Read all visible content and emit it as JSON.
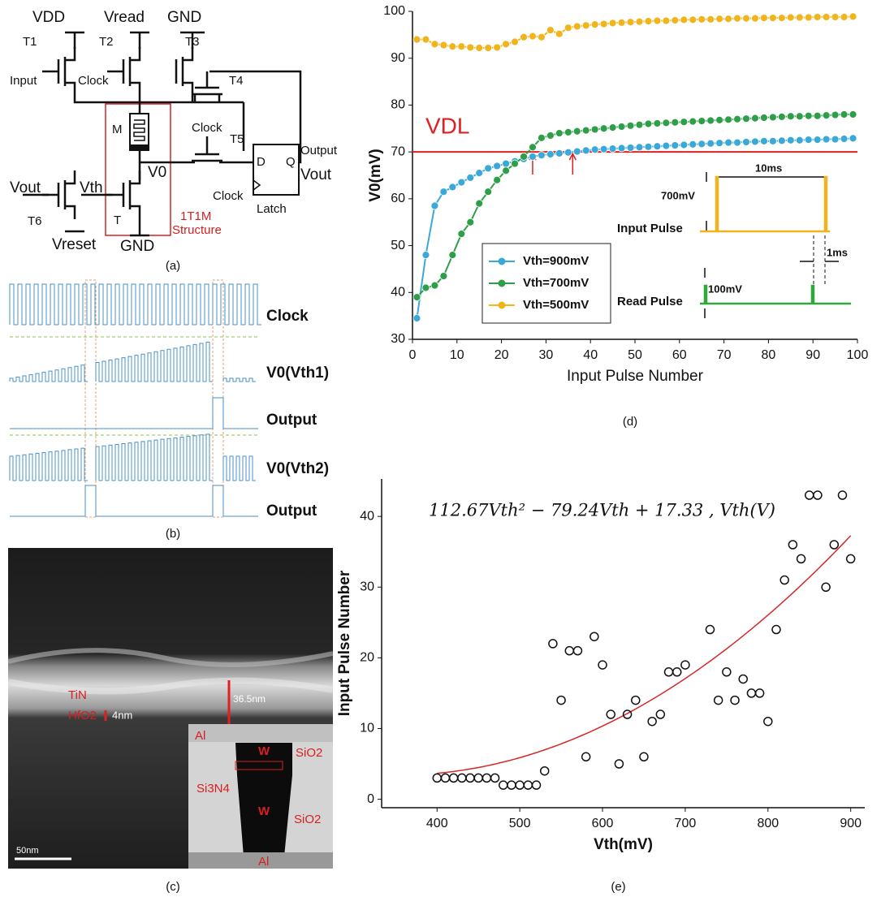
{
  "panel_a": {
    "label": "(a)",
    "texts": {
      "vdd": "VDD",
      "t1": "T1",
      "vread": "Vread",
      "t2": "T2",
      "gnd_top": "GND",
      "t3": "T3",
      "input": "Input",
      "clock1": "Clock",
      "t4": "T4",
      "m": "M",
      "clock2": "Clock",
      "t5": "T5",
      "output": "Output",
      "vout_left": "Vout",
      "vth": "Vth",
      "v0": "V0",
      "d": "D",
      "q": "Q",
      "vout_right": "Vout",
      "clock3": "Clock",
      "t6": "T6",
      "t": "T",
      "latch": "Latch",
      "vreset": "Vreset",
      "gnd_bottom": "GND",
      "structure_1": "1T1M",
      "structure_2": "Structure"
    }
  },
  "panel_b": {
    "label": "(b)",
    "signals": [
      "Clock",
      "V0(Vth1)",
      "Output",
      "V0(Vth2)",
      "Output"
    ]
  },
  "panel_c": {
    "label": "(c)",
    "texts": {
      "tin": "TiN",
      "hfo2": "HfO2",
      "thin": "4nm",
      "thick": "36.5nm",
      "al_top": "Al",
      "w_top": "W",
      "sio2_top": "SiO2",
      "si3n4": "Si3N4",
      "w_bottom": "W",
      "sio2_bottom": "SiO2",
      "al_bottom": "Al",
      "scale": "50nm"
    }
  },
  "chart_data": [
    {
      "type": "line",
      "panel_label": "(d)",
      "x": [
        1,
        3,
        5,
        7,
        9,
        11,
        13,
        15,
        17,
        19,
        21,
        23,
        25,
        27,
        29,
        31,
        33,
        35,
        37,
        39,
        41,
        43,
        45,
        47,
        49,
        51,
        53,
        55,
        57,
        59,
        61,
        63,
        65,
        67,
        69,
        71,
        73,
        75,
        77,
        79,
        81,
        83,
        85,
        87,
        89,
        91,
        93,
        95,
        97,
        99
      ],
      "series": [
        {
          "name": "Vth=900mV",
          "color": "#3aa8d8",
          "values": [
            34.5,
            48,
            58.5,
            61.5,
            62.5,
            63.5,
            64.5,
            65.5,
            66.5,
            67,
            67.5,
            68,
            68.5,
            69,
            69.3,
            69.5,
            69.7,
            69.9,
            70.1,
            70.3,
            70.5,
            70.6,
            70.7,
            70.8,
            70.9,
            71,
            71.1,
            71.2,
            71.3,
            71.4,
            71.5,
            71.6,
            71.7,
            71.8,
            71.9,
            72,
            72,
            72.1,
            72.2,
            72.3,
            72.3,
            72.4,
            72.5,
            72.5,
            72.6,
            72.6,
            72.7,
            72.7,
            72.8,
            72.9
          ]
        },
        {
          "name": "Vth=700mV",
          "color": "#2e9f48",
          "values": [
            39,
            41,
            41.5,
            43.5,
            48,
            52.5,
            55,
            59,
            61.5,
            64,
            66,
            67.5,
            69,
            71,
            73,
            73.5,
            74,
            74.2,
            74.4,
            74.6,
            74.8,
            75,
            75.2,
            75.4,
            75.6,
            75.8,
            76,
            76.1,
            76.2,
            76.3,
            76.4,
            76.5,
            76.6,
            76.7,
            76.8,
            76.9,
            77,
            77.1,
            77.2,
            77.3,
            77.4,
            77.5,
            77.6,
            77.6,
            77.7,
            77.7,
            77.8,
            77.9,
            78,
            78
          ]
        },
        {
          "name": "Vth=500mV",
          "color": "#f2b41c",
          "values": [
            94,
            94,
            93,
            92.8,
            92.5,
            92.5,
            92.3,
            92.2,
            92.2,
            92.3,
            93,
            93.5,
            94.5,
            94.7,
            94.5,
            96,
            95.2,
            96.5,
            96.8,
            97,
            97.2,
            97.3,
            97.5,
            97.6,
            97.7,
            97.8,
            97.9,
            98,
            98,
            98.1,
            98.2,
            98.2,
            98.3,
            98.3,
            98.4,
            98.4,
            98.5,
            98.5,
            98.5,
            98.6,
            98.6,
            98.6,
            98.7,
            98.7,
            98.7,
            98.8,
            98.8,
            98.8,
            98.8,
            98.9
          ]
        }
      ],
      "xlim": [
        0,
        100
      ],
      "ylim": [
        30,
        100
      ],
      "xticks": [
        0,
        10,
        20,
        30,
        40,
        50,
        60,
        70,
        80,
        90,
        100
      ],
      "yticks": [
        30,
        40,
        50,
        60,
        70,
        80,
        90,
        100
      ],
      "xlabel": "Input Pulse Number",
      "ylabel": "V0(mV)",
      "reference_line": {
        "value": 70,
        "label": "VDL",
        "color": "#e02020"
      },
      "arrows_x": [
        27,
        36
      ],
      "inset": {
        "period": "10ms",
        "input_amp": "700mV",
        "input_name": "Input Pulse",
        "width": "1ms",
        "read_amp": "100mV",
        "read_name": "Read Pulse",
        "input_color": "#f2b41c",
        "read_color": "#2ea83a"
      }
    },
    {
      "type": "scatter",
      "panel_label": "(e)",
      "x": [
        400,
        410,
        420,
        430,
        440,
        450,
        460,
        470,
        480,
        490,
        500,
        510,
        520,
        530,
        540,
        550,
        560,
        570,
        580,
        590,
        600,
        610,
        620,
        630,
        640,
        650,
        660,
        670,
        680,
        690,
        700,
        730,
        740,
        750,
        760,
        770,
        780,
        790,
        800,
        810,
        820,
        830,
        840,
        850,
        860,
        870,
        880,
        890,
        900
      ],
      "values": [
        3,
        3,
        3,
        3,
        3,
        3,
        3,
        3,
        2,
        2,
        2,
        2,
        2,
        4,
        22,
        14,
        21,
        21,
        6,
        23,
        19,
        12,
        5,
        12,
        14,
        6,
        11,
        12,
        18,
        18,
        19,
        24,
        14,
        18,
        14,
        17,
        15,
        15,
        11,
        24,
        31,
        36,
        34,
        43,
        43,
        30,
        36,
        43,
        34
      ],
      "xlim": [
        333,
        917
      ],
      "ylim": [
        -1.2,
        45.3
      ],
      "xticks": [
        400,
        500,
        600,
        700,
        800,
        900
      ],
      "yticks": [
        0,
        10,
        20,
        30,
        40
      ],
      "xlabel": "Vth(mV)",
      "ylabel": "Input Pulse Number",
      "fit": {
        "equation": "112.67Vth² − 79.24Vth + 17.33 , Vth(V)",
        "coefficients": [
          112.67,
          -79.24,
          17.33
        ],
        "x_range": [
          400,
          900
        ],
        "color": "#d62728"
      }
    }
  ]
}
